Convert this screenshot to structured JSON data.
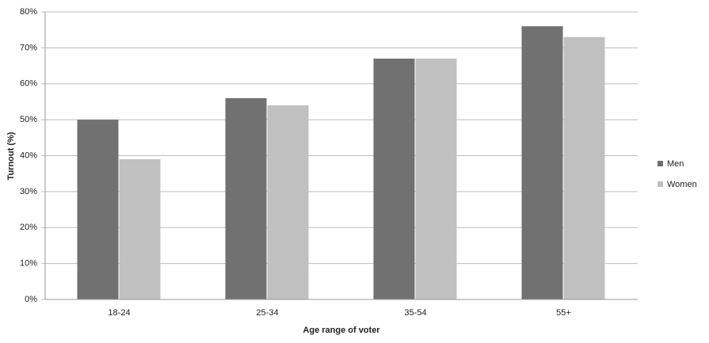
{
  "chart_data": {
    "type": "bar",
    "x_label": "Age range of voter",
    "y_label": "Turnout (%)",
    "categories": [
      "18-24",
      "25-34",
      "35-54",
      "55+"
    ],
    "series": [
      {
        "name": "Men",
        "color": "#717171",
        "values": [
          50,
          56,
          67,
          76
        ]
      },
      {
        "name": "Women",
        "color": "#c0c0c0",
        "values": [
          39,
          54,
          67,
          73
        ]
      }
    ],
    "ylim": [
      0,
      80
    ],
    "yticks": [
      {
        "value": 0,
        "label": "0%"
      },
      {
        "value": 10,
        "label": "10%"
      },
      {
        "value": 20,
        "label": "20%"
      },
      {
        "value": 30,
        "label": "30%"
      },
      {
        "value": 40,
        "label": "40%"
      },
      {
        "value": 50,
        "label": "50%"
      },
      {
        "value": 60,
        "label": "60%"
      },
      {
        "value": 70,
        "label": "70%"
      },
      {
        "value": 80,
        "label": "80%"
      }
    ],
    "grid": true,
    "legend": "right"
  }
}
